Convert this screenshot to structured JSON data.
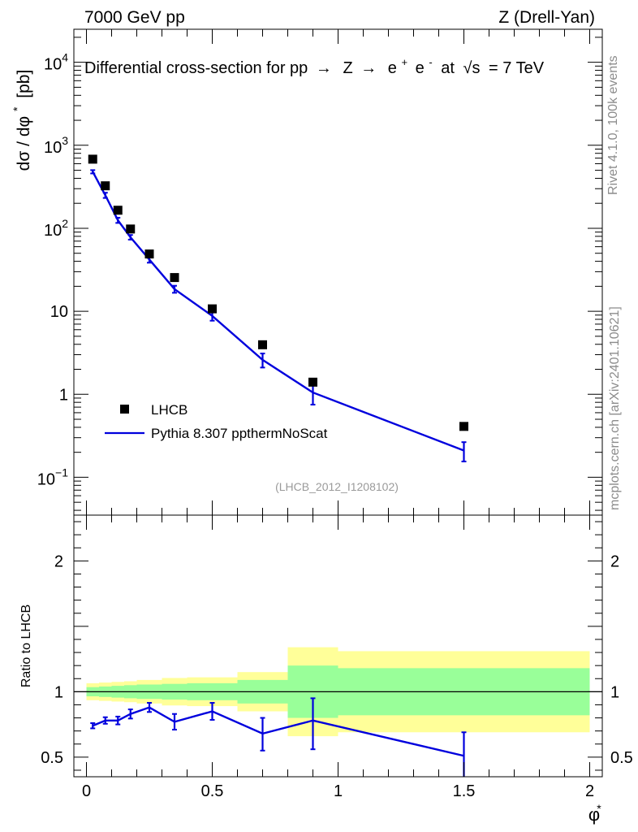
{
  "header": {
    "energy": "7000 GeV pp",
    "process": "Z (Drell-Yan)"
  },
  "side_labels": {
    "rivet": "Rivet 4.1.0,  100k events",
    "mcplots": "mcplots.cern.ch [arXiv:2401.10621]"
  },
  "colors": {
    "mc": "#0000dd",
    "data": "#000000",
    "band_inner": "#99ff99",
    "band_outer": "#ffff99"
  },
  "chart_data": [
    {
      "type": "scatter",
      "title": "Differential cross-section for pp→ Z → e⁺ e⁻ at √s = 7 TeV",
      "title_parts": {
        "main": "Differential cross-section for pp",
        "arrow": "→",
        "z": "Z",
        "pos": "e",
        "sup_plus": "+",
        "neg": "e",
        "sup_minus": "-",
        "at": "at",
        "sqrt": "√s",
        "energy": "= 7 TeV"
      },
      "ylabel": "dσ / dφ* [pb]",
      "ylabel_parts": {
        "main": "dσ / dφ",
        "star": "*",
        "unit": "[pb]"
      },
      "yscale": "log",
      "ylim": [
        0.035,
        25000
      ],
      "xlim": [
        -0.05,
        2.05
      ],
      "yticks": [
        {
          "value": 0.1,
          "base": "10",
          "exp": "−1"
        },
        {
          "value": 1,
          "text": "1"
        },
        {
          "value": 10,
          "text": "10"
        },
        {
          "value": 100,
          "base": "10",
          "exp": "2"
        },
        {
          "value": 1000,
          "base": "10",
          "exp": "3"
        },
        {
          "value": 10000,
          "base": "10",
          "exp": "4"
        }
      ],
      "watermark": "(LHCB_2012_I1208102)",
      "legend": {
        "position": "bottom-left",
        "data_label": "LHCB",
        "mc_label": "Pythia 8.307 ppthermNoScat"
      },
      "series": [
        {
          "name": "LHCB",
          "kind": "data",
          "x": [
            0.025,
            0.075,
            0.125,
            0.175,
            0.25,
            0.35,
            0.5,
            0.7,
            0.9,
            1.5
          ],
          "values": [
            680,
            325,
            165,
            98,
            49,
            25.5,
            10.7,
            3.95,
            1.4,
            0.41
          ]
        },
        {
          "name": "Pythia 8.307 ppthermNoScat",
          "kind": "mc",
          "x": [
            0.025,
            0.075,
            0.125,
            0.175,
            0.25,
            0.35,
            0.5,
            0.7,
            0.9,
            1.5
          ],
          "values": [
            480,
            250,
            125,
            78,
            42,
            18.5,
            8.8,
            2.6,
            1.05,
            0.21
          ],
          "err_up": [
            22,
            18,
            9,
            5,
            3.5,
            1.8,
            1.1,
            0.5,
            0.3,
            0.055
          ],
          "err_down": [
            22,
            18,
            9,
            5,
            3.5,
            1.8,
            1.1,
            0.5,
            0.3,
            0.055
          ]
        }
      ]
    },
    {
      "type": "line",
      "ylabel": "Ratio to LHCB",
      "xlabel": "φ*",
      "xlabel_parts": {
        "main": "φ",
        "star": "*"
      },
      "ylim": [
        0.35,
        2.35
      ],
      "xlim": [
        -0.05,
        2.05
      ],
      "xticks": [
        {
          "value": 0,
          "text": "0"
        },
        {
          "value": 0.5,
          "text": "0.5"
        },
        {
          "value": 1,
          "text": "1"
        },
        {
          "value": 1.5,
          "text": "1.5"
        },
        {
          "value": 2,
          "text": "2"
        }
      ],
      "yticks": [
        {
          "value": 0.5,
          "text": "0.5"
        },
        {
          "value": 1,
          "text": "1"
        },
        {
          "value": 2,
          "text": "2"
        }
      ],
      "reference_line": 1,
      "bands": {
        "bins": [
          [
            0,
            0.05
          ],
          [
            0.05,
            0.1
          ],
          [
            0.1,
            0.15
          ],
          [
            0.15,
            0.2
          ],
          [
            0.2,
            0.3
          ],
          [
            0.3,
            0.4
          ],
          [
            0.4,
            0.6
          ],
          [
            0.6,
            0.8
          ],
          [
            0.8,
            1.0
          ],
          [
            1.0,
            2.0
          ]
        ],
        "outer": [
          0.065,
          0.07,
          0.075,
          0.08,
          0.09,
          0.105,
          0.11,
          0.15,
          0.34,
          0.31
        ],
        "inner": [
          0.035,
          0.04,
          0.045,
          0.05,
          0.055,
          0.06,
          0.065,
          0.09,
          0.2,
          0.18
        ]
      },
      "series": [
        {
          "name": "Pythia 8.307 ppthermNoScat",
          "x": [
            0.025,
            0.075,
            0.125,
            0.175,
            0.25,
            0.35,
            0.5,
            0.7,
            0.9,
            1.5
          ],
          "values": [
            0.74,
            0.78,
            0.78,
            0.83,
            0.88,
            0.77,
            0.85,
            0.68,
            0.78,
            0.51
          ],
          "err_up": [
            0.02,
            0.025,
            0.03,
            0.035,
            0.035,
            0.06,
            0.065,
            0.12,
            0.17,
            0.18
          ],
          "err_down": [
            0.02,
            0.025,
            0.03,
            0.035,
            0.035,
            0.06,
            0.065,
            0.13,
            0.22,
            0.2
          ]
        }
      ]
    }
  ]
}
